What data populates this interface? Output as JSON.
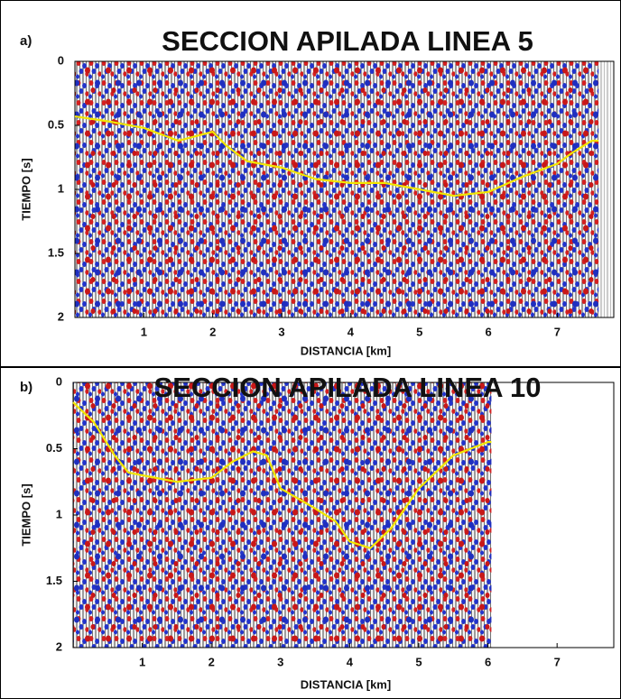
{
  "chart_data": [
    {
      "type": "line",
      "label": "a)",
      "title": "SECCION APILADA LINEA 5",
      "xlabel": "DISTANCIA [km]",
      "ylabel": "TIEMPO [s]",
      "x": [
        0,
        0.5,
        1,
        1.3,
        1.5,
        2,
        2.2,
        2.5,
        3,
        3.5,
        4,
        4.5,
        5,
        5.5,
        6,
        6.5,
        7,
        7.2,
        7.5,
        7.6
      ],
      "values": [
        0.43,
        0.47,
        0.52,
        0.58,
        0.62,
        0.55,
        0.66,
        0.78,
        0.83,
        0.92,
        0.95,
        0.95,
        1.0,
        1.05,
        1.02,
        0.9,
        0.8,
        0.72,
        0.62,
        0.62
      ],
      "color": "#f2e600",
      "xlim": [
        0,
        7.82
      ],
      "ylim": [
        0,
        2
      ],
      "y_inverted": true,
      "xticks": [
        1,
        2,
        3,
        4,
        5,
        6,
        7
      ],
      "yticks": [
        0,
        0.5,
        1,
        1.5,
        2
      ]
    },
    {
      "type": "line",
      "label": "b)",
      "title": "SECCION APILADA LINEA 10",
      "xlabel": "DISTANCIA [km]",
      "ylabel": "TIEMPO [s]",
      "x": [
        0,
        0.3,
        0.6,
        0.8,
        1,
        1.5,
        2,
        2.3,
        2.6,
        2.8,
        3,
        3.5,
        3.8,
        4,
        4.3,
        4.6,
        5,
        5.5,
        6,
        6.05
      ],
      "values": [
        0.15,
        0.3,
        0.55,
        0.68,
        0.7,
        0.75,
        0.72,
        0.6,
        0.52,
        0.55,
        0.8,
        0.95,
        1.05,
        1.2,
        1.25,
        1.1,
        0.8,
        0.55,
        0.45,
        0.45
      ],
      "color": "#f2e600",
      "xlim": [
        0,
        7.82
      ],
      "ylim": [
        0,
        2
      ],
      "y_inverted": true,
      "xticks": [
        1,
        2,
        3,
        4,
        5,
        6,
        7
      ],
      "yticks": [
        0,
        0.5,
        1,
        1.5,
        2
      ]
    }
  ]
}
